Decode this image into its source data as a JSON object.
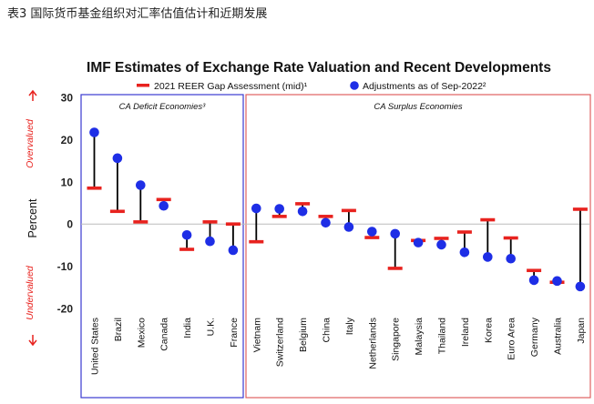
{
  "caption": "表3 国际货币基金组织对汇率估值估计和近期发展",
  "chart_data": {
    "type": "scatter",
    "title": "IMF Estimates of Exchange Rate Valuation and Recent Developments",
    "ylabel": "Percent",
    "ylim": [
      -20,
      30
    ],
    "yticks": [
      30,
      20,
      10,
      0,
      -10,
      -20
    ],
    "grid": false,
    "legend_position": "top",
    "overvalued_label": "Overvalued",
    "undervalued_label": "Undervalued",
    "series": [
      {
        "name": "2021 REER Gap Assessment (mid)¹",
        "marker": "dash",
        "color": "#e8221e"
      },
      {
        "name": "Adjustments as of Sep-2022²",
        "marker": "dot",
        "color": "#1e2ee6"
      }
    ],
    "groups": [
      {
        "label": "CA Deficit Economies³",
        "color": "#3a3ad0"
      },
      {
        "label": "CA Surplus Economies",
        "color": "#e06060"
      }
    ],
    "points": [
      {
        "country": "United States",
        "group": 0,
        "gap": 8.5,
        "adj": 21.7
      },
      {
        "country": "Brazil",
        "group": 0,
        "gap": 3.0,
        "adj": 15.6
      },
      {
        "country": "Mexico",
        "group": 0,
        "gap": 0.5,
        "adj": 9.2
      },
      {
        "country": "Canada",
        "group": 0,
        "gap": 5.8,
        "adj": 4.3
      },
      {
        "country": "India",
        "group": 0,
        "gap": -6.0,
        "adj": -2.6
      },
      {
        "country": "U.K.",
        "group": 0,
        "gap": 0.5,
        "adj": -4.1
      },
      {
        "country": "France",
        "group": 0,
        "gap": 0.0,
        "adj": -6.2
      },
      {
        "country": "Vietnam",
        "group": 1,
        "gap": -4.2,
        "adj": 3.7
      },
      {
        "country": "Switzerland",
        "group": 1,
        "gap": 1.8,
        "adj": 3.6
      },
      {
        "country": "Belgium",
        "group": 1,
        "gap": 4.8,
        "adj": 3.0
      },
      {
        "country": "China",
        "group": 1,
        "gap": 1.8,
        "adj": 0.3
      },
      {
        "country": "Italy",
        "group": 1,
        "gap": 3.2,
        "adj": -0.7
      },
      {
        "country": "Netherlands",
        "group": 1,
        "gap": -3.2,
        "adj": -1.8
      },
      {
        "country": "Singapore",
        "group": 1,
        "gap": -10.5,
        "adj": -2.3
      },
      {
        "country": "Malaysia",
        "group": 1,
        "gap": -3.9,
        "adj": -4.4
      },
      {
        "country": "Thailand",
        "group": 1,
        "gap": -3.4,
        "adj": -4.9
      },
      {
        "country": "Ireland",
        "group": 1,
        "gap": -1.9,
        "adj": -6.7
      },
      {
        "country": "Korea",
        "group": 1,
        "gap": 1.0,
        "adj": -7.8
      },
      {
        "country": "Euro Area",
        "group": 1,
        "gap": -3.3,
        "adj": -8.2
      },
      {
        "country": "Germany",
        "group": 1,
        "gap": -11.0,
        "adj": -13.3
      },
      {
        "country": "Australia",
        "group": 1,
        "gap": -13.8,
        "adj": -13.5
      },
      {
        "country": "Japan",
        "group": 1,
        "gap": 3.5,
        "adj": -14.8
      }
    ],
    "colors": {
      "gap": "#e8221e",
      "adj": "#1e2ee6",
      "stem": "#000000",
      "arrow": "#e8221e",
      "deficit_box": "#3a3ad0",
      "surplus_box": "#e06060"
    }
  }
}
